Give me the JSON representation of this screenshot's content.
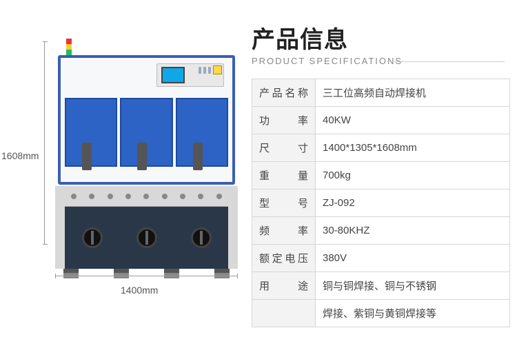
{
  "heading": {
    "cn": "产品信息",
    "en": "PRODUCT SPECIFICATIONS"
  },
  "dimensions_callout": {
    "height": "1608mm",
    "width": "1400mm"
  },
  "colors": {
    "frame_blue": "#3a5fb1",
    "station_blue": "#2d63c4",
    "bench_dark": "#2a3748",
    "grid_border": "#d6d6d6",
    "key_bg": "#f3f3f3",
    "text": "#444444",
    "subtext": "#888888",
    "heading_rule": "#cccccc"
  },
  "spec_rows": [
    {
      "key": "产品名称",
      "value": "三工位高频自动焊接机"
    },
    {
      "key": "功　率",
      "value": "40KW"
    },
    {
      "key": "尺　寸",
      "value": "1400*1305*1608mm"
    },
    {
      "key": "重　量",
      "value": "700kg"
    },
    {
      "key": "型　号",
      "value": "ZJ-092"
    },
    {
      "key": "频　率",
      "value": "30-80KHZ"
    },
    {
      "key": "额定电压",
      "value": "380V"
    },
    {
      "key": "用　途",
      "value": "铜与铜焊接、铜与不锈钢"
    },
    {
      "key": "",
      "value": "焊接、紫铜与黄铜焊接等"
    }
  ]
}
